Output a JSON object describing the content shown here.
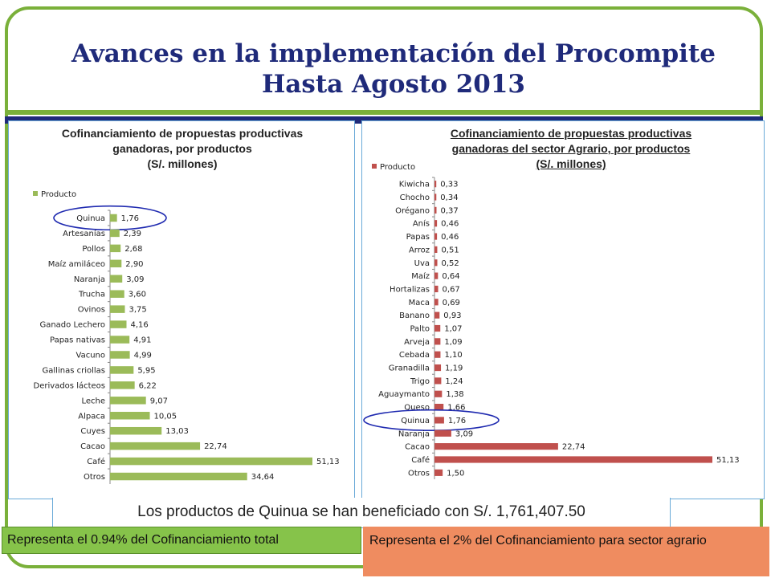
{
  "slide": {
    "title": "Avances en la implementación del Procompite Hasta Agosto 2013",
    "note": "Los productos de Quinua se han beneficiado con S/. 1,761,407.50",
    "note_green": "Representa el 0.94% del Cofinanciamiento total",
    "note_orange": "Representa el 2% del Cofinanciamiento para sector agrario"
  },
  "colors": {
    "title": "#1f2a7a",
    "frame": "#7ab03a",
    "bar_left": "#9bbb59",
    "bar_right": "#c0504d",
    "highlight": "#1f2ab0"
  },
  "chart_data": [
    {
      "type": "bar",
      "orientation": "horizontal",
      "title_lines": [
        "Cofinanciamiento de propuestas productivas",
        "ganadoras, por productos",
        "(S/. millones)"
      ],
      "legend": "Producto",
      "legend_position": "top-left",
      "highlighted": "Quinua",
      "categories": [
        "Quinua",
        "Artesanías",
        "Pollos",
        "Maíz amiláceo",
        "Naranja",
        "Trucha",
        "Ovinos",
        "Ganado Lechero",
        "Papas nativas",
        "Vacuno",
        "Gallinas criollas",
        "Derivados lácteos",
        "Leche",
        "Alpaca",
        "Cuyes",
        "Cacao",
        "Café",
        "Otros"
      ],
      "values": [
        1.76,
        2.39,
        2.68,
        2.9,
        3.09,
        3.6,
        3.75,
        4.16,
        4.91,
        4.99,
        5.95,
        6.22,
        9.07,
        10.05,
        13.03,
        22.74,
        51.13,
        34.64
      ],
      "labels": [
        "1,76",
        "2,39",
        "2,68",
        "2,90",
        "3,09",
        "3,60",
        "3,75",
        "4,16",
        "4,91",
        "4,99",
        "5,95",
        "6,22",
        "9,07",
        "10,05",
        "13,03",
        "22,74",
        "51,13",
        "34,64"
      ]
    },
    {
      "type": "bar",
      "orientation": "horizontal",
      "title_lines": [
        "Cofinanciamiento de propuestas productivas",
        "ganadoras del sector Agrario, por productos",
        "(S/. millones)"
      ],
      "legend": "Producto",
      "legend_position": "top-left",
      "highlighted": "Quinua",
      "categories": [
        "Kiwicha",
        "Chocho",
        "Orégano",
        "Anís",
        "Papas",
        "Arroz",
        "Uva",
        "Maíz",
        "Hortalizas",
        "Maca",
        "Banano",
        "Palto",
        "Arveja",
        "Cebada",
        "Granadilla",
        "Trigo",
        "Aguaymanto",
        "Queso",
        "Quinua",
        "Naranja",
        "Cacao",
        "Café",
        "Otros"
      ],
      "values": [
        0.33,
        0.34,
        0.37,
        0.46,
        0.46,
        0.51,
        0.52,
        0.64,
        0.67,
        0.69,
        0.93,
        1.07,
        1.09,
        1.1,
        1.19,
        1.24,
        1.38,
        1.66,
        1.76,
        3.09,
        22.74,
        51.13,
        1.5
      ],
      "labels": [
        "0,33",
        "0,34",
        "0,37",
        "0,46",
        "0,46",
        "0,51",
        "0,52",
        "0,64",
        "0,67",
        "0,69",
        "0,93",
        "1,07",
        "1,09",
        "1,10",
        "1,19",
        "1,24",
        "1,38",
        "1,66",
        "1,76",
        "3,09",
        "22,74",
        "51,13",
        "1,50"
      ]
    }
  ]
}
